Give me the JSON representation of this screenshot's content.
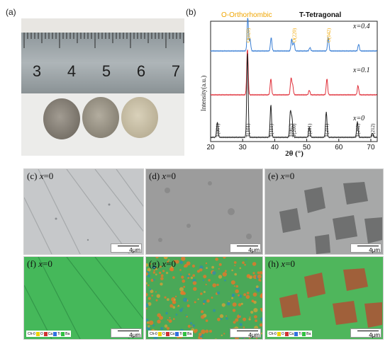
{
  "panels": {
    "a": {
      "label": "(a)",
      "ruler_numbers": [
        "3",
        "4",
        "5",
        "6",
        "7"
      ]
    },
    "b": {
      "label": "(b)"
    },
    "c": {
      "label": "(c)",
      "x_text": "x",
      "eq": "=0",
      "scale": "4μm"
    },
    "d": {
      "label": "(d)",
      "x_text": "x",
      "eq": "=0",
      "scale": "4μm"
    },
    "e": {
      "label": "(e)",
      "x_text": "x",
      "eq": "=0",
      "scale": "4μm"
    },
    "f": {
      "label": "(f)",
      "x_text": "x",
      "eq": "=0",
      "scale": "4μm",
      "legend": [
        "Ch-0",
        "O",
        "Ca",
        "Ti",
        "Ba"
      ]
    },
    "g": {
      "label": "(g)",
      "x_text": "x",
      "eq": "=0",
      "scale": "4μm",
      "legend": [
        "Ch-0",
        "O",
        "Ca",
        "Ti",
        "Ba"
      ]
    },
    "h": {
      "label": "(h)",
      "x_text": "x",
      "eq": "=0",
      "scale": "4μm",
      "legend": [
        "Ch-0",
        "O",
        "Ca",
        "Ti",
        "Ba"
      ]
    }
  },
  "colors": {
    "blue_trace": "#3a7fd5",
    "red_trace": "#e0303a",
    "black_trace": "#222222",
    "orange_text": "#f0a500",
    "eds_green": "#3fbf5a",
    "eds_orange": "#e0792a"
  },
  "chart_data": {
    "type": "line",
    "title": "",
    "legend_o": "O-Orthorhombic",
    "legend_t": "T-Tetragonal",
    "xlabel": "2θ (°)",
    "ylabel": "Intensity(a.u.)",
    "xlim": [
      20,
      72
    ],
    "x_ticks": [
      20,
      30,
      40,
      50,
      60,
      70
    ],
    "series": [
      {
        "name": "x=0.4",
        "color": "#3a7fd5",
        "peaks": [
          {
            "x": 31.6,
            "h": 1.0
          },
          {
            "x": 32.3,
            "h": 0.35
          },
          {
            "x": 38.9,
            "h": 0.4
          },
          {
            "x": 45.3,
            "h": 0.35
          },
          {
            "x": 46.0,
            "h": 0.25
          },
          {
            "x": 51.0,
            "h": 0.1
          },
          {
            "x": 56.7,
            "h": 0.4
          },
          {
            "x": 66.2,
            "h": 0.2
          }
        ]
      },
      {
        "name": "x=0.1",
        "color": "#e0303a",
        "peaks": [
          {
            "x": 31.5,
            "h": 1.0
          },
          {
            "x": 38.8,
            "h": 0.35
          },
          {
            "x": 45.1,
            "h": 0.35
          },
          {
            "x": 45.6,
            "h": 0.2
          },
          {
            "x": 50.8,
            "h": 0.1
          },
          {
            "x": 56.3,
            "h": 0.35
          },
          {
            "x": 66.0,
            "h": 0.2
          }
        ]
      },
      {
        "name": "x=0",
        "color": "#222222",
        "peaks": [
          {
            "x": 22.1,
            "h": 0.18
          },
          {
            "x": 31.5,
            "h": 1.0
          },
          {
            "x": 38.8,
            "h": 0.38
          },
          {
            "x": 44.9,
            "h": 0.3
          },
          {
            "x": 45.4,
            "h": 0.22
          },
          {
            "x": 50.8,
            "h": 0.12
          },
          {
            "x": 56.1,
            "h": 0.3
          },
          {
            "x": 65.8,
            "h": 0.18
          },
          {
            "x": 70.5,
            "h": 0.05
          }
        ]
      }
    ],
    "annotations_o": [
      "O(020)",
      "O(220)",
      "O(042)"
    ],
    "annotations_t": [
      "T(001)",
      "T(101)",
      "T(111)",
      "T(002)",
      "T(200)",
      "T(201)",
      "T(211)",
      "T(202)",
      "T(212)"
    ]
  }
}
